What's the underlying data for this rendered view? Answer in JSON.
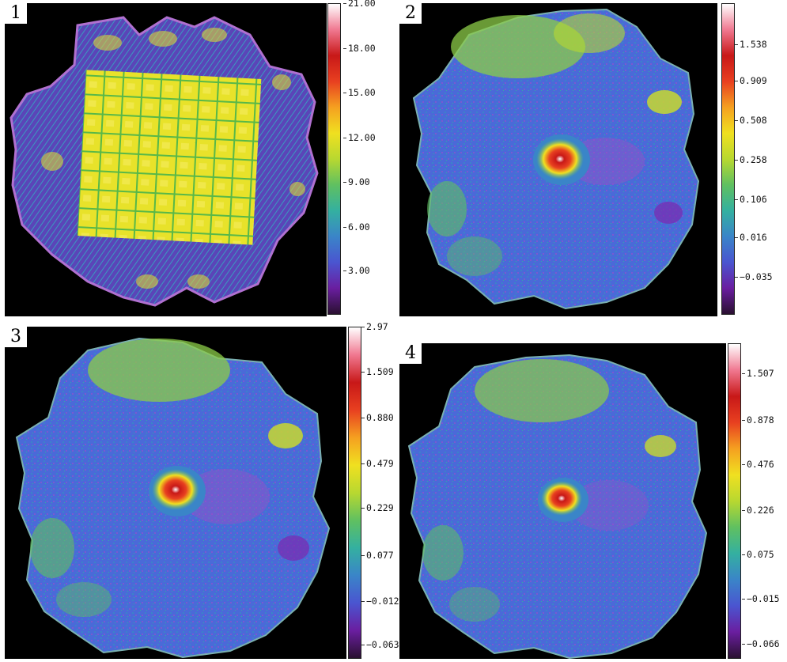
{
  "colormap": [
    "#2a1030",
    "#6a1ea0",
    "#4a55d0",
    "#3a85c8",
    "#34b0a0",
    "#60c060",
    "#b8d830",
    "#f0e020",
    "#f5a020",
    "#e84020",
    "#c81818",
    "#f07890",
    "#ffffff"
  ],
  "panels": [
    {
      "label": "1",
      "map_kind": "coverage",
      "colorbar_top_label": "21.00",
      "colorbar_ticks": [
        "18.00",
        "15.00",
        "12.00",
        "9.00",
        "6.00",
        "3.00"
      ]
    },
    {
      "label": "2",
      "map_kind": "sky",
      "colorbar_top_label": "",
      "colorbar_ticks": [
        "1.538",
        "0.909",
        "0.508",
        "0.258",
        "0.106",
        "0.016",
        "−0.035"
      ]
    },
    {
      "label": "3",
      "map_kind": "sky",
      "colorbar_top_label": "2.97",
      "colorbar_ticks": [
        "1.509",
        "0.880",
        "0.479",
        "0.229",
        "0.077",
        "−0.012",
        "−0.063"
      ]
    },
    {
      "label": "4",
      "map_kind": "sky",
      "colorbar_top_label": "",
      "colorbar_ticks": [
        "1.507",
        "0.878",
        "0.476",
        "0.226",
        "0.075",
        "−0.015",
        "−0.066"
      ]
    }
  ]
}
